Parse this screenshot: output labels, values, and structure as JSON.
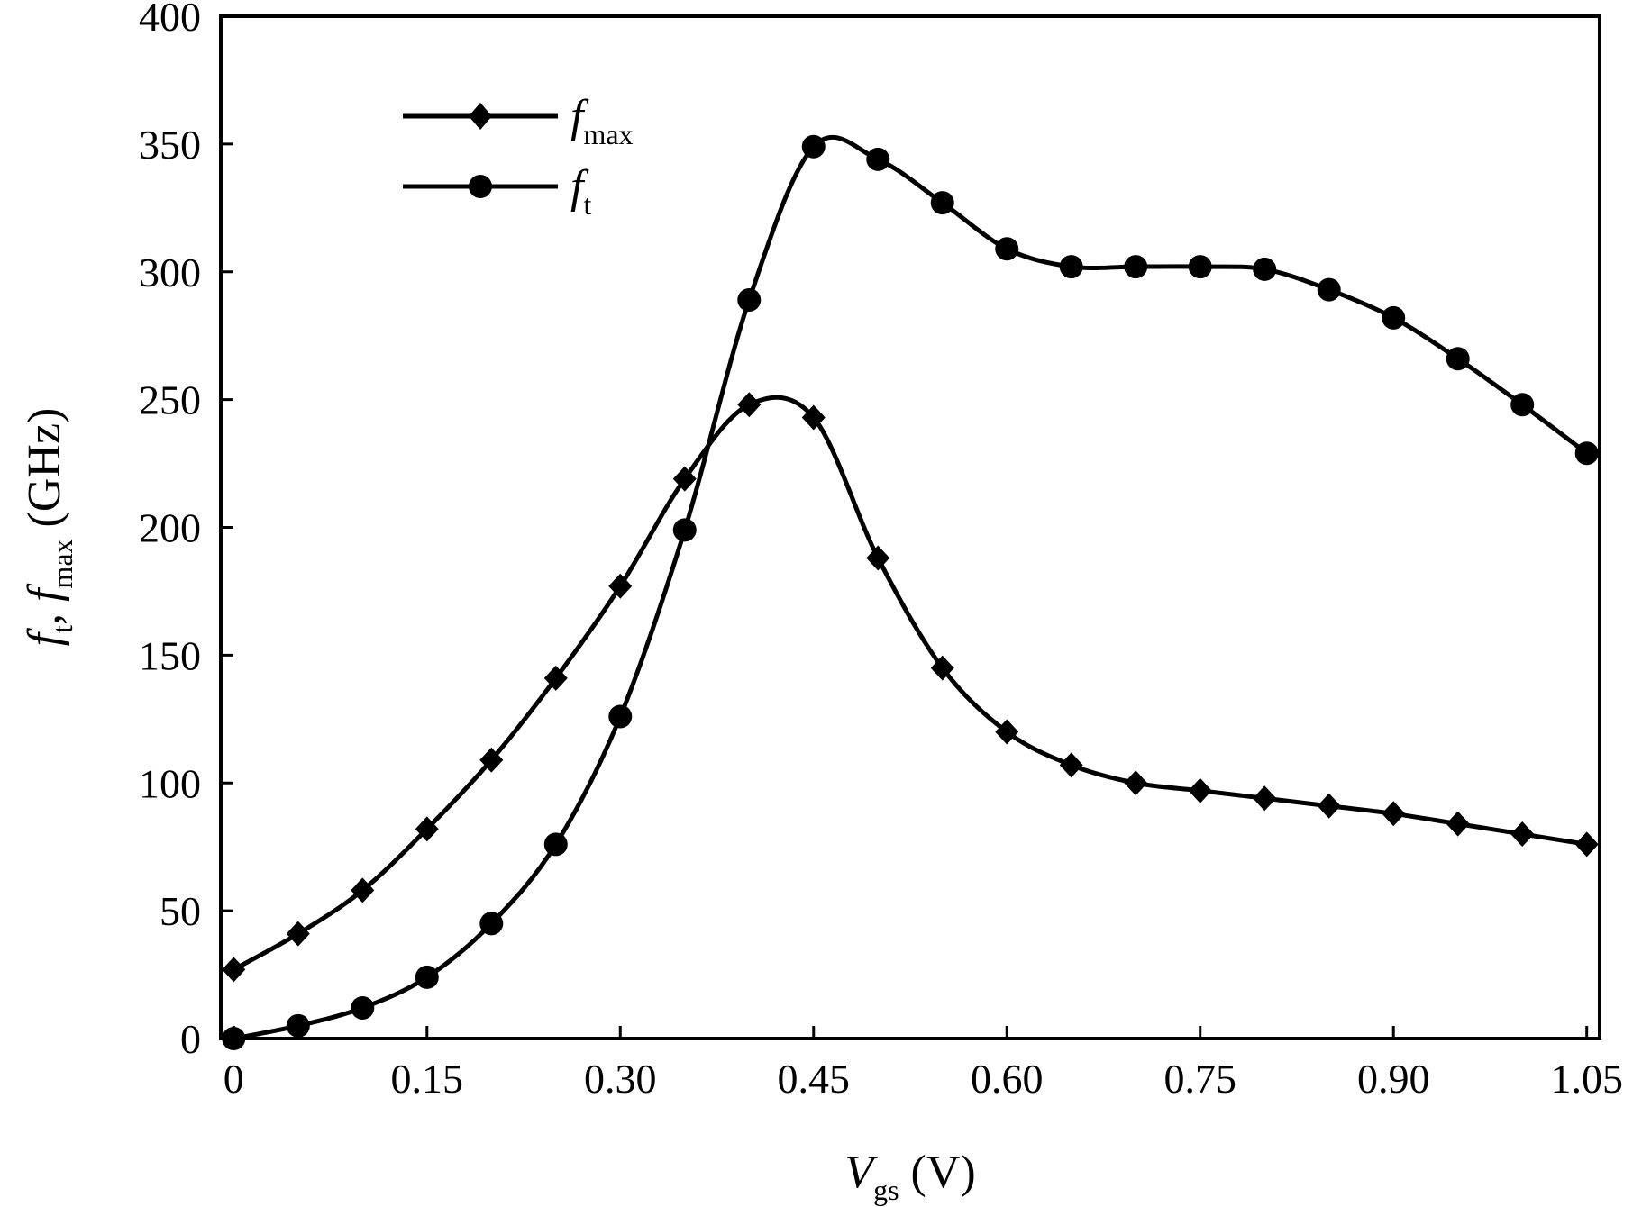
{
  "chart_data": {
    "type": "line",
    "xlabel": {
      "main": "V",
      "sub": "gs",
      "unit": " (V)"
    },
    "ylabel": {
      "part1": "f",
      "sub1": "t",
      "sep": ", ",
      "part2": "f",
      "sub2": "max",
      "unit": " (GHz)"
    },
    "xlim": [
      -0.01,
      1.06
    ],
    "ylim": [
      0,
      400
    ],
    "x_ticks": [
      0,
      0.15,
      0.3,
      0.45,
      0.6,
      0.75,
      0.9,
      1.05
    ],
    "x_tick_labels": [
      "0",
      "0.15",
      "0.30",
      "0.45",
      "0.60",
      "0.75",
      "0.90",
      "1.05"
    ],
    "y_ticks": [
      0,
      50,
      100,
      150,
      200,
      250,
      300,
      350,
      400
    ],
    "y_tick_labels": [
      "0",
      "50",
      "100",
      "150",
      "200",
      "250",
      "300",
      "350",
      "400"
    ],
    "grid": false,
    "legend_position": "top-left",
    "series": [
      {
        "name": "f_max",
        "legend_main": "f",
        "legend_sub": "max",
        "marker": "diamond",
        "color": "#000000",
        "x": [
          0,
          0.05,
          0.1,
          0.15,
          0.2,
          0.25,
          0.3,
          0.35,
          0.4,
          0.45,
          0.5,
          0.55,
          0.6,
          0.65,
          0.7,
          0.75,
          0.8,
          0.85,
          0.9,
          0.95,
          1.0,
          1.05
        ],
        "y": [
          27,
          41,
          58,
          82,
          109,
          141,
          177,
          219,
          248,
          243,
          188,
          145,
          120,
          107,
          100,
          97,
          94,
          91,
          88,
          84,
          80,
          76
        ]
      },
      {
        "name": "f_t",
        "legend_main": "f",
        "legend_sub": "t",
        "marker": "circle",
        "color": "#000000",
        "x": [
          0,
          0.05,
          0.1,
          0.15,
          0.2,
          0.25,
          0.3,
          0.35,
          0.4,
          0.45,
          0.5,
          0.55,
          0.6,
          0.65,
          0.7,
          0.75,
          0.8,
          0.85,
          0.9,
          0.95,
          1.0,
          1.05
        ],
        "y": [
          0,
          5,
          12,
          24,
          45,
          76,
          126,
          199,
          289,
          349,
          344,
          327,
          309,
          302,
          302,
          302,
          301,
          293,
          282,
          266,
          248,
          229
        ]
      }
    ]
  }
}
